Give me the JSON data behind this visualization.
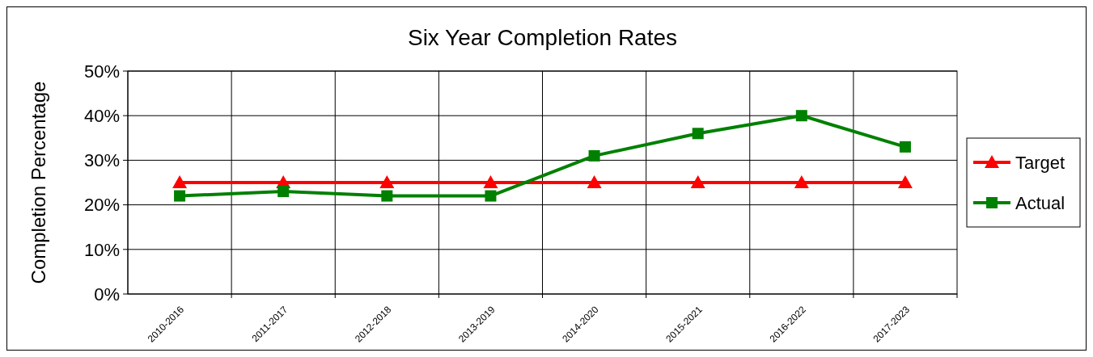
{
  "chart_data": {
    "type": "line",
    "title": "Six Year Completion Rates",
    "ylabel": "Completion Percentage",
    "categories": [
      "2010-2016",
      "2011-2017",
      "2012-2018",
      "2013-2019",
      "2014-2020",
      "2015-2021",
      "2016-2022",
      "2017-2023"
    ],
    "series": [
      {
        "name": "Target",
        "color": "#ff0000",
        "marker": "triangle",
        "values": [
          25,
          25,
          25,
          25,
          25,
          25,
          25,
          25
        ]
      },
      {
        "name": "Actual",
        "color": "#008000",
        "marker": "square",
        "values": [
          22,
          23,
          22,
          22,
          31,
          36,
          40,
          33
        ]
      }
    ],
    "ylim": [
      0,
      50
    ],
    "yticks": [
      {
        "value": 0,
        "label": "0%"
      },
      {
        "value": 10,
        "label": "10%"
      },
      {
        "value": 20,
        "label": "20%"
      },
      {
        "value": 30,
        "label": "30%"
      },
      {
        "value": 40,
        "label": "40%"
      },
      {
        "value": 50,
        "label": "50%"
      }
    ],
    "grid": true,
    "legend": "right",
    "line_style": "solid"
  }
}
